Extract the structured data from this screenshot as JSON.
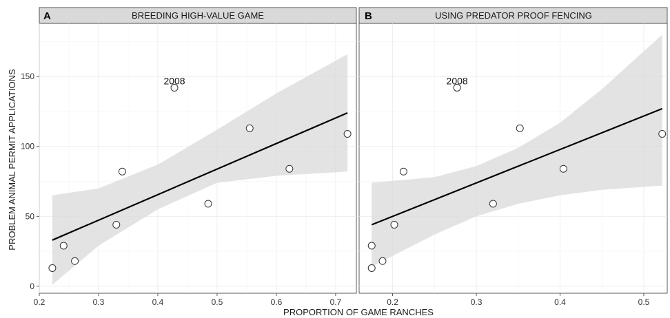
{
  "xlabel": "PROPORTION OF GAME RANCHES",
  "ylabel": "PROBLEM ANIMAL PERMIT APPLICATIONS",
  "chart_data": [
    {
      "type": "scatter",
      "panel_label": "A",
      "title": "BREEDING HIGH-VALUE GAME",
      "xlim": [
        0.2,
        0.735
      ],
      "ylim": [
        -5,
        188
      ],
      "x_ticks": [
        0.2,
        0.3,
        0.4,
        0.5,
        0.6,
        0.7
      ],
      "x_tick_labels": [
        "0.2",
        "0.3",
        "0.4",
        "0.5",
        "0.6",
        "0.7"
      ],
      "y_ticks": [
        0,
        50,
        100,
        150
      ],
      "y_tick_labels": [
        "0",
        "50",
        "100",
        "150"
      ],
      "grid": true,
      "points": [
        {
          "x": 0.222,
          "y": 13
        },
        {
          "x": 0.241,
          "y": 29
        },
        {
          "x": 0.26,
          "y": 18
        },
        {
          "x": 0.33,
          "y": 44
        },
        {
          "x": 0.34,
          "y": 82
        },
        {
          "x": 0.428,
          "y": 142
        },
        {
          "x": 0.485,
          "y": 59
        },
        {
          "x": 0.555,
          "y": 113
        },
        {
          "x": 0.622,
          "y": 84
        },
        {
          "x": 0.72,
          "y": 109
        }
      ],
      "fit_line": {
        "x": [
          0.222,
          0.72
        ],
        "y": [
          33,
          124
        ]
      },
      "confidence_band": {
        "x": [
          0.222,
          0.3,
          0.4,
          0.5,
          0.6,
          0.72
        ],
        "lower": [
          1,
          29,
          55,
          74,
          79,
          82
        ],
        "upper": [
          65,
          70,
          87,
          112,
          138,
          166
        ]
      },
      "annotations": [
        {
          "text": "2008",
          "x": 0.428,
          "y": 147
        }
      ]
    },
    {
      "type": "scatter",
      "panel_label": "B",
      "title": "USING PREDATOR PROOF FENCING",
      "xlim": [
        0.16,
        0.528
      ],
      "ylim": [
        -5,
        188
      ],
      "x_ticks": [
        0.2,
        0.3,
        0.4,
        0.5
      ],
      "x_tick_labels": [
        "0.2",
        "0.3",
        "0.4",
        "0.5"
      ],
      "y_ticks": [
        0,
        50,
        100,
        150
      ],
      "grid": true,
      "points": [
        {
          "x": 0.175,
          "y": 29
        },
        {
          "x": 0.175,
          "y": 13
        },
        {
          "x": 0.188,
          "y": 18
        },
        {
          "x": 0.202,
          "y": 44
        },
        {
          "x": 0.213,
          "y": 82
        },
        {
          "x": 0.277,
          "y": 142
        },
        {
          "x": 0.32,
          "y": 59
        },
        {
          "x": 0.352,
          "y": 113
        },
        {
          "x": 0.404,
          "y": 84
        },
        {
          "x": 0.522,
          "y": 109
        }
      ],
      "fit_line": {
        "x": [
          0.175,
          0.522
        ],
        "y": [
          44,
          127
        ]
      },
      "confidence_band": {
        "x": [
          0.175,
          0.25,
          0.3,
          0.35,
          0.4,
          0.45,
          0.522
        ],
        "lower": [
          14,
          37,
          50,
          59,
          65,
          69,
          72
        ],
        "upper": [
          74,
          78,
          86,
          99,
          117,
          141,
          180
        ]
      },
      "annotations": [
        {
          "text": "2008",
          "x": 0.277,
          "y": 147
        }
      ]
    }
  ]
}
